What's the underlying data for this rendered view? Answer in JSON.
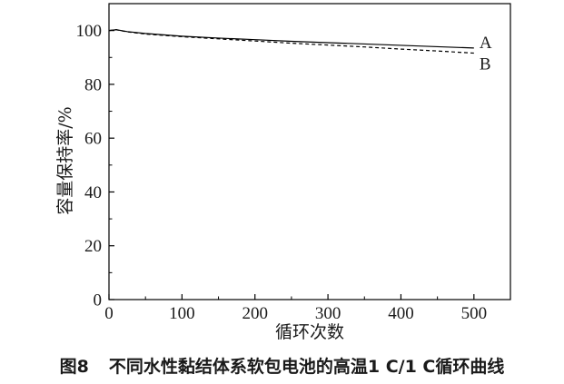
{
  "caption": {
    "figure_number": "图8",
    "text": "不同水性黏结体系软包电池的高温1 C/1 C循环曲线"
  },
  "chart_data": {
    "type": "line",
    "xlabel": "循环次数",
    "ylabel": "容量保持率/%",
    "xlim": [
      0,
      550
    ],
    "ylim": [
      0,
      110
    ],
    "xticks": [
      "0",
      "100",
      "200",
      "300",
      "400",
      "500"
    ],
    "yticks": [
      "0",
      "20",
      "40",
      "60",
      "80",
      "100"
    ],
    "grid": false,
    "series": [
      {
        "name": "A",
        "line_style": "solid",
        "color": "#000000",
        "x": [
          0,
          10,
          25,
          50,
          100,
          150,
          200,
          250,
          300,
          350,
          400,
          450,
          500
        ],
        "y": [
          100.0,
          100.3,
          99.6,
          98.9,
          97.9,
          97.2,
          96.6,
          96.0,
          95.5,
          95.0,
          94.5,
          94.0,
          93.5
        ]
      },
      {
        "name": "B",
        "line_style": "dashed",
        "color": "#000000",
        "x": [
          0,
          10,
          25,
          50,
          100,
          150,
          200,
          250,
          300,
          350,
          400,
          450,
          500
        ],
        "y": [
          100.0,
          100.3,
          99.5,
          98.7,
          97.7,
          96.9,
          96.1,
          95.3,
          94.6,
          93.9,
          93.1,
          92.4,
          91.6
        ]
      }
    ]
  }
}
